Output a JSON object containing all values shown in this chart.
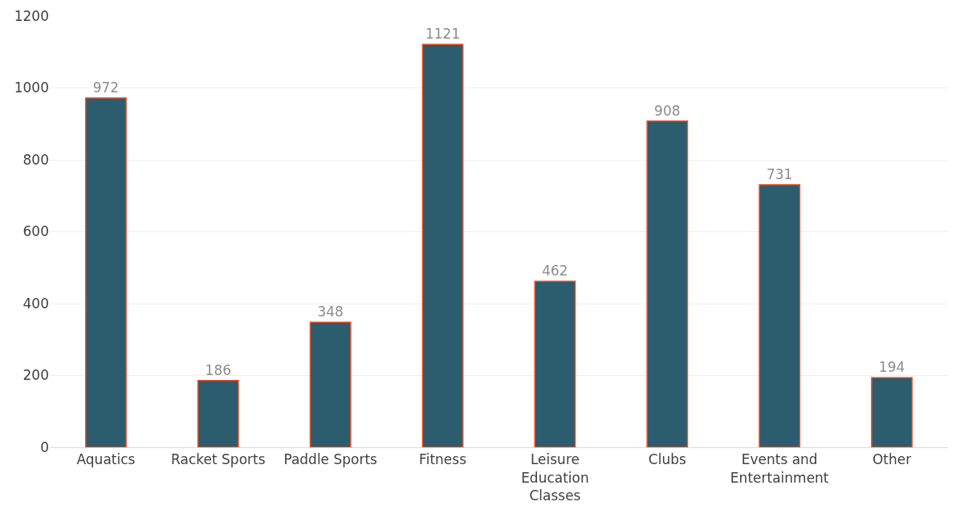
{
  "chart_data": {
    "type": "bar",
    "categories": [
      "Aquatics",
      "Racket Sports",
      "Paddle Sports",
      "Fitness",
      "Leisure Education Classes",
      "Clubs",
      "Events and Entertainment",
      "Other"
    ],
    "values": [
      972,
      186,
      348,
      1121,
      462,
      908,
      731,
      194
    ],
    "color": "#2b5d6e",
    "ylim": [
      0,
      1200
    ],
    "yticks": [
      0,
      200,
      400,
      600,
      800,
      1000,
      1200
    ],
    "grid": "y",
    "data_labels": true
  }
}
